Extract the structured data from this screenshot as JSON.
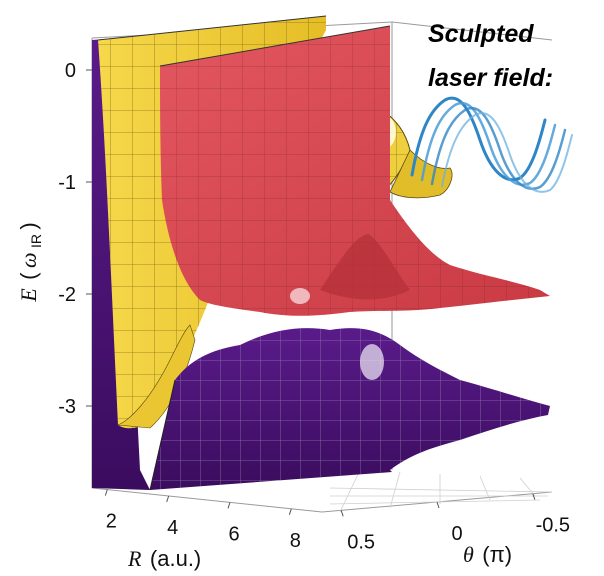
{
  "y_axis": {
    "label_symbol": "E",
    "label_open": "(",
    "label_unit": "ω",
    "label_sub": "IR",
    "label_close": ")",
    "ticks": [
      {
        "value": 0,
        "label": "0"
      },
      {
        "value": -1,
        "label": "-1"
      },
      {
        "value": -2,
        "label": "-2"
      },
      {
        "value": -3,
        "label": "-3"
      }
    ]
  },
  "r_axis": {
    "label_symbol": "R",
    "label_unit": "(a.u.)",
    "ticks": [
      {
        "value": 2,
        "label": "2"
      },
      {
        "value": 4,
        "label": "4"
      },
      {
        "value": 6,
        "label": "6"
      },
      {
        "value": 8,
        "label": "8"
      }
    ]
  },
  "theta_axis": {
    "label_symbol": "θ",
    "label_unit": "(π)",
    "ticks": [
      {
        "value": 0.5,
        "label": "0.5"
      },
      {
        "value": 0,
        "label": "0"
      },
      {
        "value": -0.5,
        "label": "-0.5"
      }
    ]
  },
  "inset": {
    "line1": "Sculpted",
    "line2": "laser field:"
  },
  "colors": {
    "yellow_surface": "#f2cf3a",
    "red_surface": "#d9464e",
    "purple_surface": "#4b1278",
    "laser_blue": "#2f86c6"
  },
  "surfaces": [
    "yellow-potential-surface",
    "red-potential-surface",
    "purple-potential-surface"
  ]
}
